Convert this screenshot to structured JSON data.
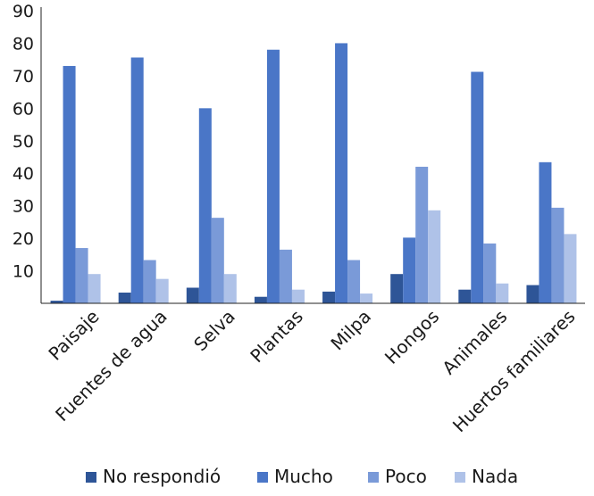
{
  "chart_data": {
    "type": "bar",
    "categories": [
      "Paisaje",
      "Fuentes de agua",
      "Selva",
      "Plantas",
      "Milpa",
      "Hongos",
      "Animales",
      "Huertos familiares"
    ],
    "series": [
      {
        "name": "No respondió",
        "color": "#2e5597",
        "values": [
          0.8,
          3.3,
          4.8,
          2.0,
          3.6,
          9.0,
          4.2,
          5.6
        ]
      },
      {
        "name": "Mucho",
        "color": "#4a76c7",
        "values": [
          73,
          75.6,
          60,
          78,
          80,
          20.2,
          71.2,
          43.4
        ]
      },
      {
        "name": "Poco",
        "color": "#7a9ad8",
        "values": [
          17,
          13.3,
          26.3,
          16.5,
          13.3,
          42,
          18.4,
          29.4
        ]
      },
      {
        "name": "Nada",
        "color": "#afc2e8",
        "values": [
          9,
          7.5,
          9,
          4.2,
          3,
          28.6,
          6.1,
          21.3
        ]
      }
    ],
    "yticks": [
      "10",
      "20",
      "30",
      "40",
      "50",
      "60",
      "70",
      "80",
      "90"
    ],
    "ylim": [
      0,
      90
    ],
    "grid": false,
    "legend": "bottom"
  }
}
